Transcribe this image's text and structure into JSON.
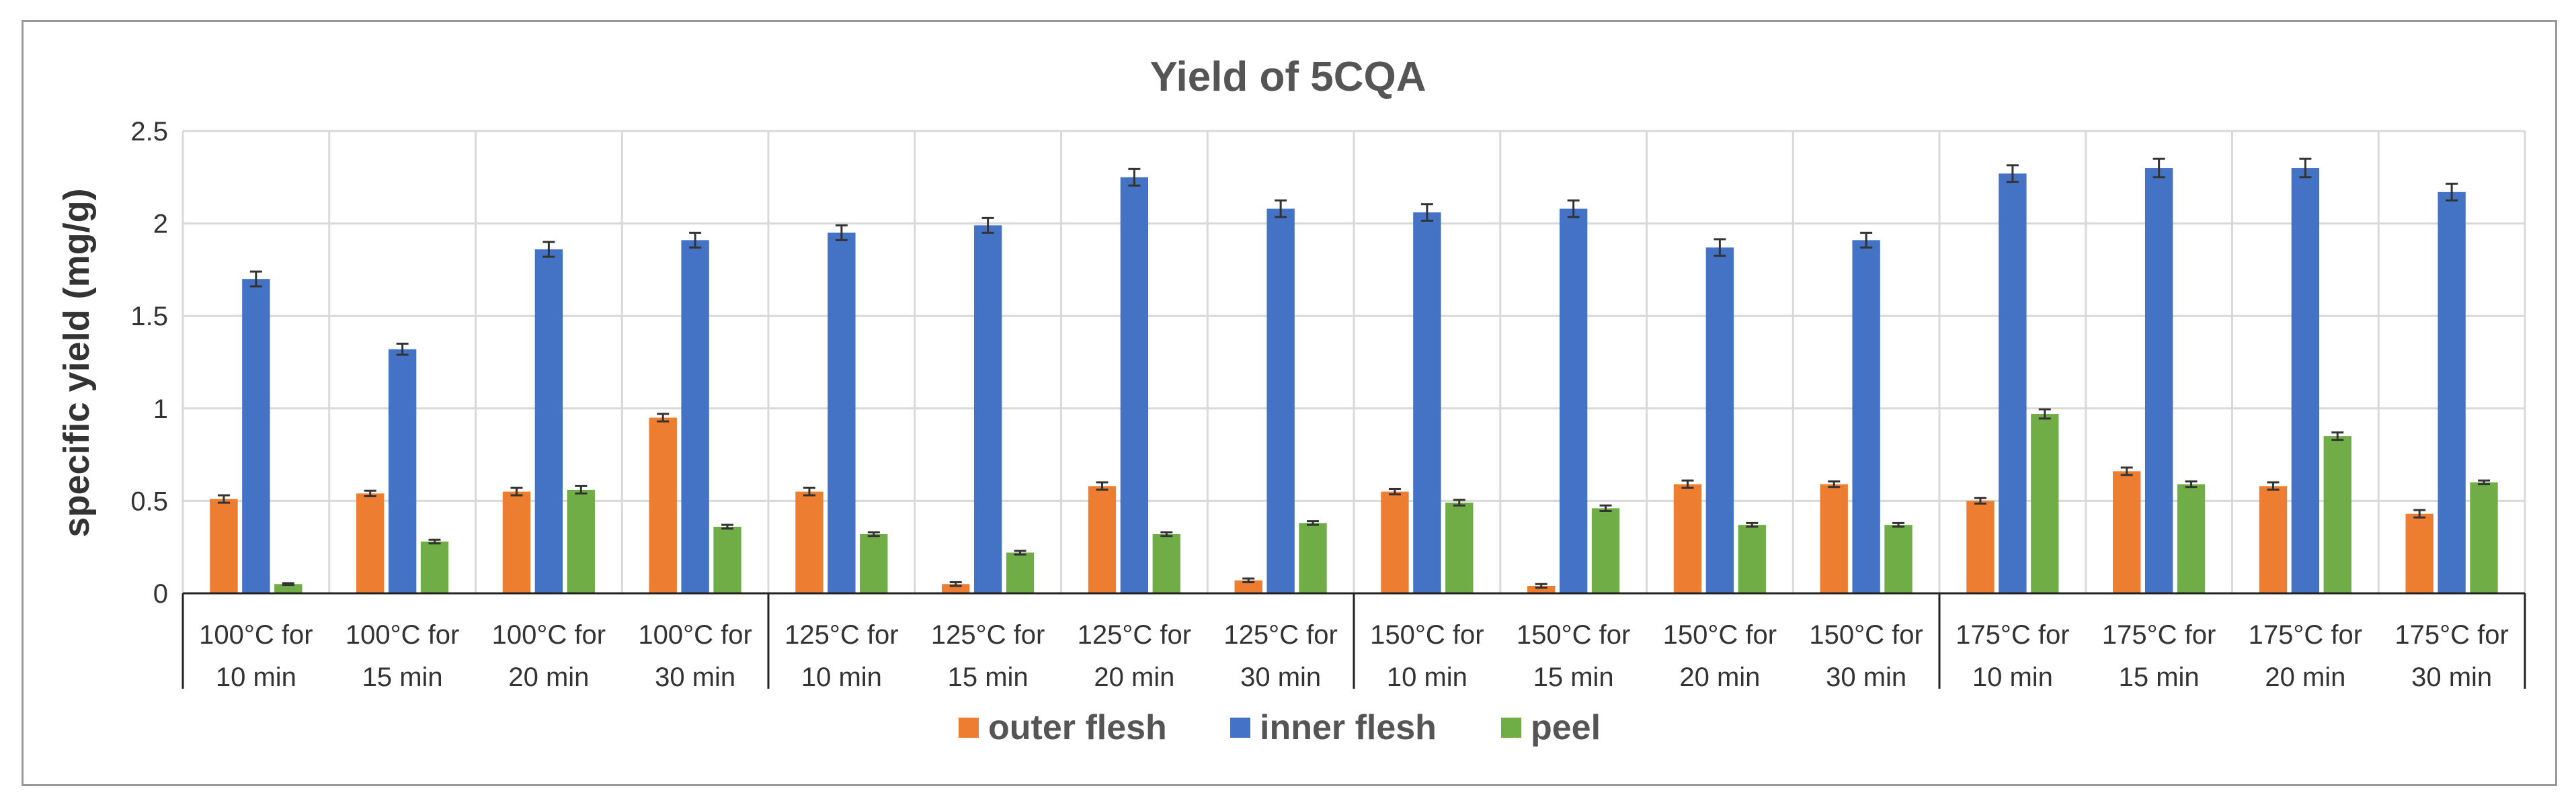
{
  "chart_data": {
    "type": "bar",
    "title": "Yield of 5CQA",
    "xlabel": "",
    "ylabel": "specific yield (mg/g)",
    "ylim": [
      0,
      2.5
    ],
    "yticks": [
      "0",
      "0.5",
      "1",
      "1.5",
      "2",
      "2.5"
    ],
    "grid": true,
    "legend_position": "bottom",
    "categories": [
      [
        "100°C for",
        "10 min"
      ],
      [
        "100°C for",
        "15 min"
      ],
      [
        "100°C for",
        "20 min"
      ],
      [
        "100°C for",
        "30 min"
      ],
      [
        "125°C for",
        "10 min"
      ],
      [
        "125°C for",
        "15 min"
      ],
      [
        "125°C for",
        "20 min"
      ],
      [
        "125°C for",
        "30 min"
      ],
      [
        "150°C for",
        "10 min"
      ],
      [
        "150°C for",
        "15 min"
      ],
      [
        "150°C for",
        "20 min"
      ],
      [
        "150°C for",
        "30 min"
      ],
      [
        "175°C for",
        "10 min"
      ],
      [
        "175°C for",
        "15 min"
      ],
      [
        "175°C for",
        "20 min"
      ],
      [
        "175°C for",
        "30 min"
      ]
    ],
    "series": [
      {
        "name": "outer flesh",
        "color": "#ED7D31",
        "values": [
          0.51,
          0.54,
          0.55,
          0.95,
          0.55,
          0.05,
          0.58,
          0.07,
          0.55,
          0.04,
          0.59,
          0.59,
          0.5,
          0.66,
          0.58,
          0.43
        ],
        "errors": [
          0.02,
          0.015,
          0.02,
          0.02,
          0.02,
          0.01,
          0.02,
          0.01,
          0.015,
          0.01,
          0.02,
          0.015,
          0.015,
          0.02,
          0.02,
          0.02
        ]
      },
      {
        "name": "inner flesh",
        "color": "#4472C4",
        "values": [
          1.7,
          1.32,
          1.86,
          1.91,
          1.95,
          1.99,
          2.25,
          2.08,
          2.06,
          2.08,
          1.87,
          1.91,
          2.27,
          2.3,
          2.3,
          2.17
        ],
        "errors": [
          0.04,
          0.03,
          0.04,
          0.04,
          0.04,
          0.04,
          0.045,
          0.045,
          0.045,
          0.045,
          0.045,
          0.04,
          0.045,
          0.05,
          0.05,
          0.045
        ]
      },
      {
        "name": "peel",
        "color": "#70AD47",
        "values": [
          0.05,
          0.28,
          0.56,
          0.36,
          0.32,
          0.22,
          0.32,
          0.38,
          0.49,
          0.46,
          0.37,
          0.37,
          0.97,
          0.59,
          0.85,
          0.6
        ],
        "errors": [
          0.005,
          0.01,
          0.02,
          0.01,
          0.01,
          0.01,
          0.01,
          0.01,
          0.015,
          0.015,
          0.01,
          0.01,
          0.025,
          0.015,
          0.02,
          0.01
        ]
      }
    ]
  }
}
